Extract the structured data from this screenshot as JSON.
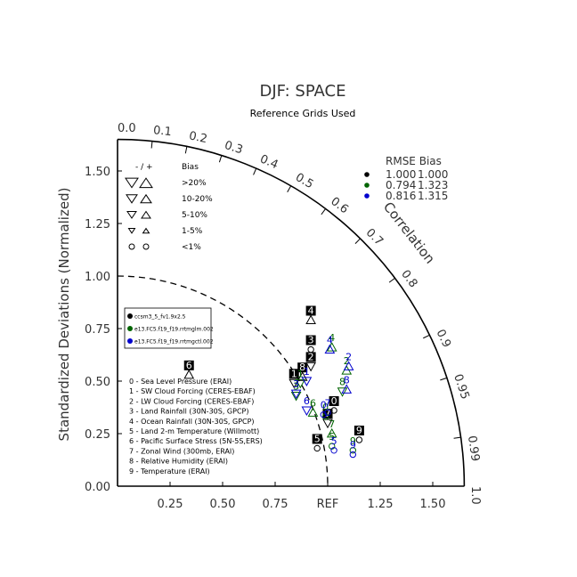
{
  "chart_data": {
    "type": "scatter",
    "subtype": "taylor-diagram",
    "title": "DJF: SPACE",
    "subtitle": "Reference Grids Used",
    "ylabel": "Standardized Deviations (Normalized)",
    "corr_label": "Correlation",
    "ref_label": "REF",
    "std_range": [
      0,
      1.65
    ],
    "x_ticks": [
      "0.25",
      "0.50",
      "0.75",
      "1.25",
      "1.50"
    ],
    "y_ticks": [
      "0.00",
      "0.25",
      "0.50",
      "0.75",
      "1.00",
      "1.25",
      "1.50"
    ],
    "corr_ticks": [
      "0.0",
      "0.1",
      "0.2",
      "0.3",
      "0.4",
      "0.5",
      "0.6",
      "0.7",
      "0.8",
      "0.9",
      "0.95",
      "0.99",
      "1.0"
    ],
    "bias_legend": {
      "header": "- / +",
      "header_bias": "Bias",
      "rows": [
        ">20%",
        "10-20%",
        "5-10%",
        "1-5%",
        "<1%"
      ]
    },
    "rmse_table": {
      "header": "RMSE  Bias",
      "rows": [
        {
          "color": "#000000",
          "rmse": "1.000",
          "bias": "1.000"
        },
        {
          "color": "#006400",
          "rmse": "0.794",
          "bias": "1.323"
        },
        {
          "color": "#0000cd",
          "rmse": "0.816",
          "bias": "1.315"
        }
      ]
    },
    "case_legend": [
      {
        "color": "#000000",
        "label": "ccsm3_5_fv1.9x2.5"
      },
      {
        "color": "#006400",
        "label": "e13.FC5.f19_f19.rrtmglm.002"
      },
      {
        "color": "#0000cd",
        "label": "e13.FC5.f19_f19.rrtmgctl.002"
      }
    ],
    "variable_legend": [
      "0 - Sea Level Pressure (ERAI)",
      "1 - SW Cloud Forcing (CERES-EBAF)",
      "2 - LW Cloud Forcing (CERES-EBAF)",
      "3 - Land Rainfall (30N-30S, GPCP)",
      "4 - Ocean Rainfall (30N-30S, GPCP)",
      "5 - Land 2-m Temperature (Willmott)",
      "6 - Pacific Surface Stress (5N-5S,ERS)",
      "7 - Zonal Wind (300mb, ERAI)",
      "8 - Relative Humidity (ERAI)",
      "9 - Temperature (ERAI)"
    ],
    "series": [
      {
        "name": "ccsm3_5_fv1.9x2.5",
        "color": "#000000",
        "points": [
          {
            "var": "0",
            "x": 1.03,
            "y": 0.39,
            "marker": "circle"
          },
          {
            "var": "1",
            "x": 0.84,
            "y": 0.52,
            "marker": "tri-down"
          },
          {
            "var": "2",
            "x": 0.92,
            "y": 0.6,
            "marker": "tri-down"
          },
          {
            "var": "3",
            "x": 0.92,
            "y": 0.68,
            "marker": "circle"
          },
          {
            "var": "4",
            "x": 0.92,
            "y": 0.82,
            "marker": "tri-up"
          },
          {
            "var": "5",
            "x": 0.95,
            "y": 0.21,
            "marker": "circle"
          },
          {
            "var": "6",
            "x": 0.34,
            "y": 0.56,
            "marker": "tri-up"
          },
          {
            "var": "7",
            "x": 1.0,
            "y": 0.33,
            "marker": "tri-down"
          },
          {
            "var": "8",
            "x": 0.88,
            "y": 0.55,
            "marker": "tri-up"
          },
          {
            "var": "9",
            "x": 1.15,
            "y": 0.25,
            "marker": "circle"
          }
        ]
      },
      {
        "name": "e13.FC5.f19_f19.rrtmglm.002",
        "color": "#006400",
        "points": [
          {
            "var": "0",
            "x": 0.99,
            "y": 0.36,
            "marker": "circle"
          },
          {
            "var": "1",
            "x": 0.87,
            "y": 0.52,
            "marker": "tri-down"
          },
          {
            "var": "2",
            "x": 1.09,
            "y": 0.58,
            "marker": "tri-up"
          },
          {
            "var": "3",
            "x": 0.85,
            "y": 0.46,
            "marker": "tri-down"
          },
          {
            "var": "4",
            "x": 1.02,
            "y": 0.69,
            "marker": "tri-up"
          },
          {
            "var": "5",
            "x": 1.02,
            "y": 0.22,
            "marker": "circle"
          },
          {
            "var": "6",
            "x": 0.93,
            "y": 0.38,
            "marker": "tri-up"
          },
          {
            "var": "7",
            "x": 1.02,
            "y": 0.28,
            "marker": "tri-up"
          },
          {
            "var": "8",
            "x": 1.07,
            "y": 0.48,
            "marker": "tri-down"
          },
          {
            "var": "9",
            "x": 1.12,
            "y": 0.2,
            "marker": "circle"
          }
        ]
      },
      {
        "name": "e13.FC5.f19_f19.rrtmgctl.002",
        "color": "#0000cd",
        "points": [
          {
            "var": "0",
            "x": 0.98,
            "y": 0.37,
            "marker": "circle"
          },
          {
            "var": "1",
            "x": 0.9,
            "y": 0.53,
            "marker": "tri-down"
          },
          {
            "var": "2",
            "x": 1.1,
            "y": 0.6,
            "marker": "tri-up"
          },
          {
            "var": "3",
            "x": 0.85,
            "y": 0.47,
            "marker": "tri-down"
          },
          {
            "var": "4",
            "x": 1.01,
            "y": 0.68,
            "marker": "tri-up"
          },
          {
            "var": "5",
            "x": 1.03,
            "y": 0.2,
            "marker": "circle"
          },
          {
            "var": "6",
            "x": 0.9,
            "y": 0.39,
            "marker": "tri-down"
          },
          {
            "var": "7",
            "x": 1.0,
            "y": 0.38,
            "marker": "circle"
          },
          {
            "var": "8",
            "x": 1.09,
            "y": 0.49,
            "marker": "tri-up"
          },
          {
            "var": "9",
            "x": 1.12,
            "y": 0.18,
            "marker": "circle"
          }
        ]
      }
    ]
  }
}
